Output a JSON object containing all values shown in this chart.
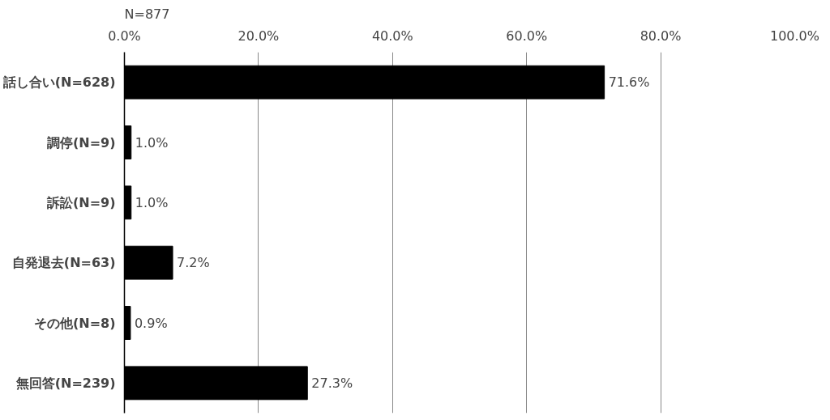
{
  "chart_data": {
    "type": "bar",
    "orientation": "horizontal",
    "title": "N=877",
    "categories": [
      "話し合い(N=628)",
      "調停(N=9)",
      "訴訟(N=9)",
      "自発退去(N=63)",
      "その他(N=8)",
      "無回答(N=239)"
    ],
    "values": [
      71.6,
      1.0,
      1.0,
      7.2,
      0.9,
      27.3
    ],
    "value_labels": [
      "71.6%",
      "1.0%",
      "1.0%",
      "7.2%",
      "0.9%",
      "27.3%"
    ],
    "color": "#000000",
    "xlim": [
      0,
      100
    ],
    "xticks": [
      {
        "value": 0,
        "label": "0.0%"
      },
      {
        "value": 20,
        "label": "20.0%"
      },
      {
        "value": 40,
        "label": "40.0%"
      },
      {
        "value": 60,
        "label": "60.0%"
      },
      {
        "value": 80,
        "label": "80.0%"
      },
      {
        "value": 100,
        "label": "100.0%"
      }
    ],
    "grid": "x"
  }
}
